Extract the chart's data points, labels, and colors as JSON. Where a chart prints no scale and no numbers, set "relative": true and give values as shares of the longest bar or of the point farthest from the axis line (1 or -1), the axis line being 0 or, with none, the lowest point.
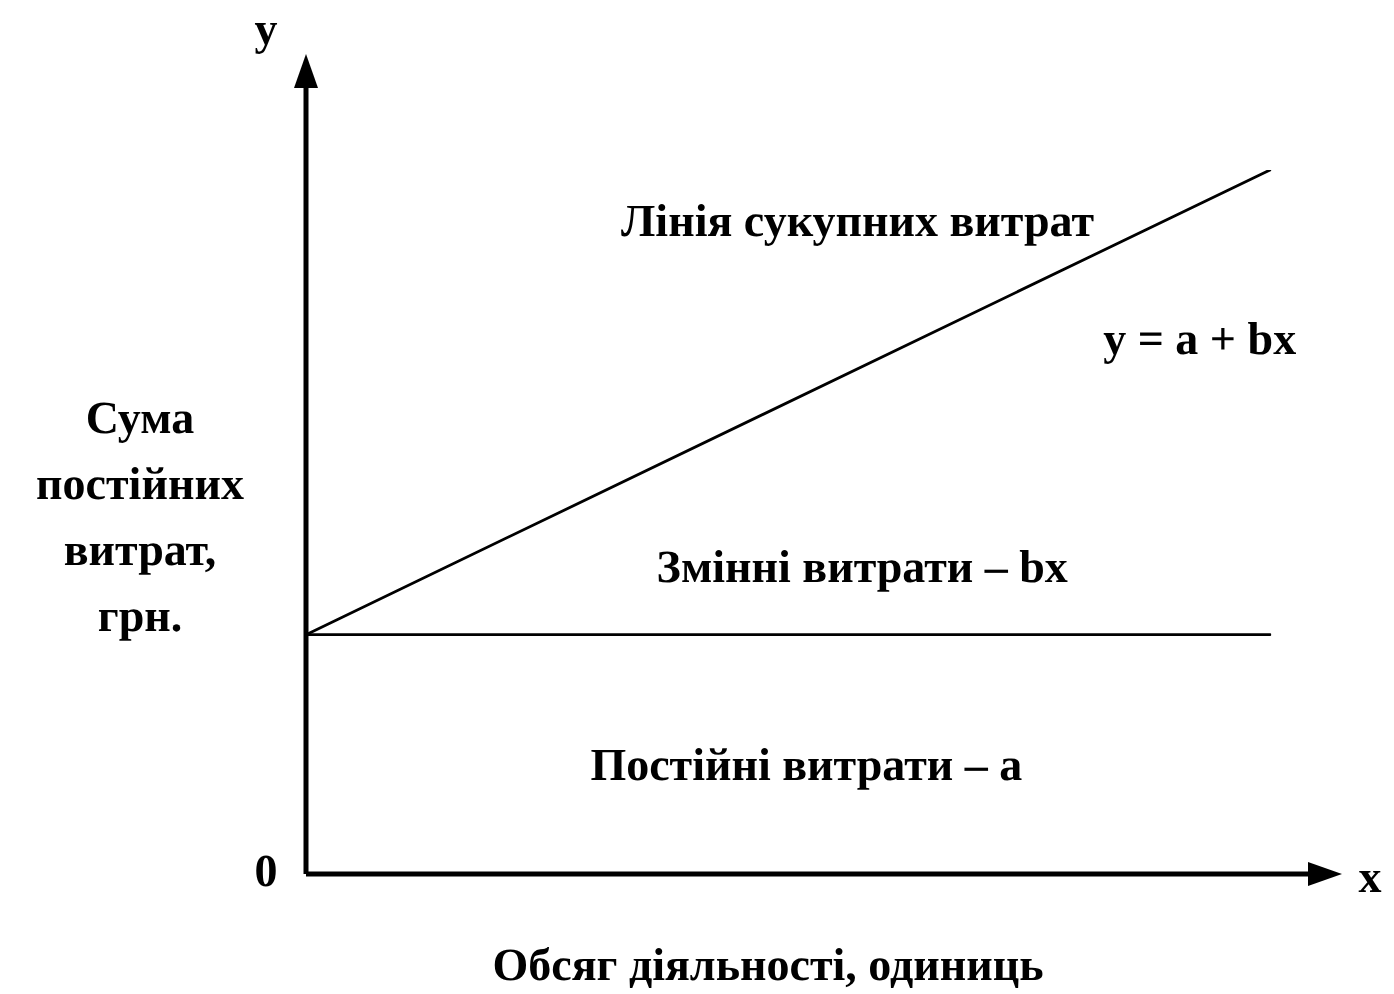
{
  "chart_data": {
    "type": "line",
    "relative": true,
    "xlabel": "Обсяг діяльності, одиниць",
    "ylabel": "Сума постійних витрат, грн.",
    "categories": [
      null,
      null
    ],
    "series": [
      {
        "name": "Лінія сукупних витрат",
        "color": "#000000",
        "values": [
          0.34,
          1
        ]
      },
      {
        "color": "#000000",
        "values": [
          0.34,
          0.34
        ]
      }
    ],
    "annotations": [
      "y = a + bx",
      "Змінні витрати – bx",
      "Постійні витрати – a",
      "0",
      "y",
      "x"
    ]
  }
}
